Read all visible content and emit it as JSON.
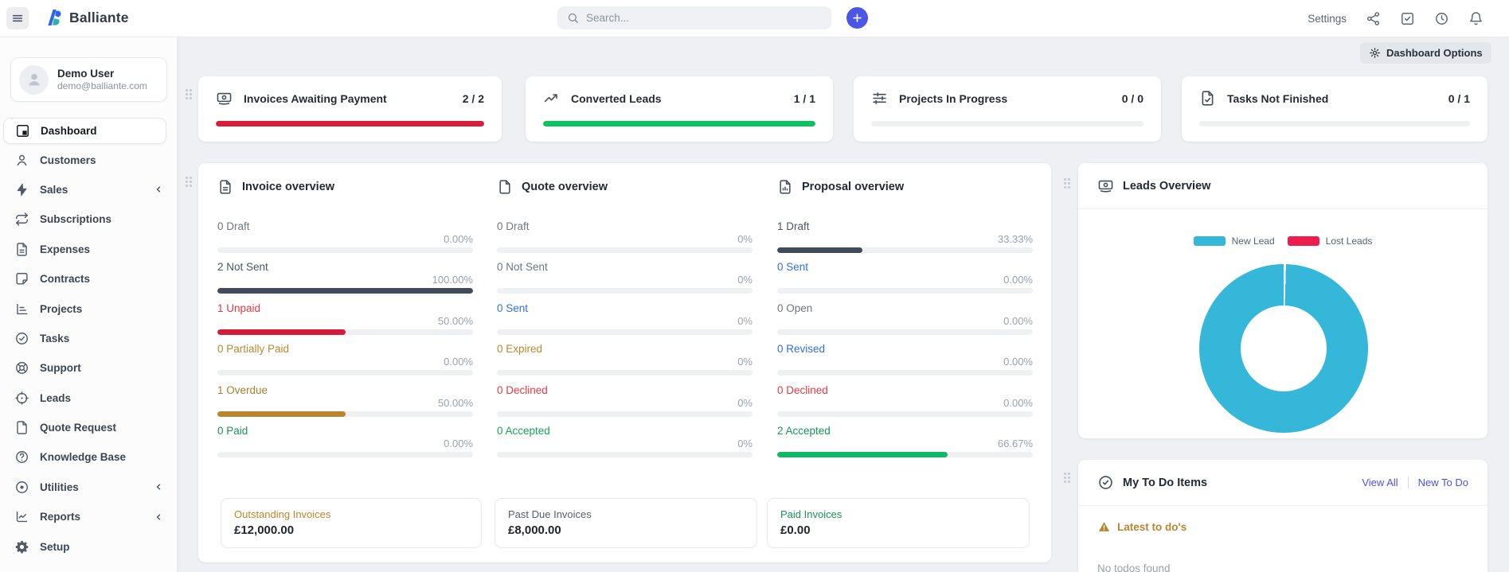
{
  "topbar": {
    "logo_text": "Balliante",
    "search_placeholder": "Search...",
    "settings_label": "Settings",
    "icons": [
      "share-icon",
      "check-square-icon",
      "clock-icon",
      "bell-icon"
    ]
  },
  "sidebar": {
    "user": {
      "name": "Demo User",
      "email": "demo@balliante.com"
    },
    "items": [
      {
        "label": "Dashboard",
        "icon": "dashboard-icon",
        "active": true,
        "chevron": false
      },
      {
        "label": "Customers",
        "icon": "customers-icon",
        "active": false,
        "chevron": false
      },
      {
        "label": "Sales",
        "icon": "sales-icon",
        "active": false,
        "chevron": true
      },
      {
        "label": "Subscriptions",
        "icon": "subscriptions-icon",
        "active": false,
        "chevron": false
      },
      {
        "label": "Expenses",
        "icon": "expenses-icon",
        "active": false,
        "chevron": false
      },
      {
        "label": "Contracts",
        "icon": "contracts-icon",
        "active": false,
        "chevron": false
      },
      {
        "label": "Projects",
        "icon": "projects-icon",
        "active": false,
        "chevron": false
      },
      {
        "label": "Tasks",
        "icon": "tasks-icon",
        "active": false,
        "chevron": false
      },
      {
        "label": "Support",
        "icon": "support-icon",
        "active": false,
        "chevron": false
      },
      {
        "label": "Leads",
        "icon": "leads-icon",
        "active": false,
        "chevron": false
      },
      {
        "label": "Quote Request",
        "icon": "quote-request-icon",
        "active": false,
        "chevron": false
      },
      {
        "label": "Knowledge Base",
        "icon": "knowledge-base-icon",
        "active": false,
        "chevron": false
      },
      {
        "label": "Utilities",
        "icon": "utilities-icon",
        "active": false,
        "chevron": true
      },
      {
        "label": "Reports",
        "icon": "reports-icon",
        "active": false,
        "chevron": true
      },
      {
        "label": "Setup",
        "icon": "setup-icon",
        "active": false,
        "chevron": false
      }
    ]
  },
  "dashboard_options": {
    "label": "Dashboard Options",
    "icon": "gear-icon"
  },
  "stat_cards": [
    {
      "label": "Invoices Awaiting Payment",
      "value": "2 / 2",
      "icon": "banknote-icon",
      "fill": 100,
      "bar_color": "#da1b39"
    },
    {
      "label": "Converted Leads",
      "value": "1 / 1",
      "icon": "trending-up-icon",
      "fill": 100,
      "bar_color": "#0cc15f"
    },
    {
      "label": "Projects In Progress",
      "value": "0 / 0",
      "icon": "sliders-icon",
      "fill": 0,
      "bar_color": "#0cc15f"
    },
    {
      "label": "Tasks Not Finished",
      "value": "0 / 1",
      "icon": "file-check-icon",
      "fill": 0,
      "bar_color": "#0cc15f"
    }
  ],
  "overview_panels": [
    {
      "title": "Invoice overview",
      "icon": "file-text-icon",
      "rows": [
        {
          "text": "0 Draft",
          "color": "#6f7782",
          "pct": "0.00%",
          "fill": 0,
          "bar_color": "#414b5c"
        },
        {
          "text": "2 Not Sent",
          "color": "#4e5660",
          "pct": "100.00%",
          "fill": 100,
          "bar_color": "#414b5c"
        },
        {
          "text": "1 Unpaid",
          "color": "#e13b42",
          "pct": "50.00%",
          "fill": 50,
          "bar_color": "#d41c3a"
        },
        {
          "text": "0 Partially Paid",
          "color": "#b78a2f",
          "pct": "0.00%",
          "fill": 0,
          "bar_color": "#b8862d"
        },
        {
          "text": "1 Overdue",
          "color": "#a9802c",
          "pct": "50.00%",
          "fill": 50,
          "bar_color": "#b8862d"
        },
        {
          "text": "0 Paid",
          "color": "#1a9355",
          "pct": "0.00%",
          "fill": 0,
          "bar_color": "#0db964"
        }
      ]
    },
    {
      "title": "Quote overview",
      "icon": "file-icon",
      "rows": [
        {
          "text": "0 Draft",
          "color": "#6f7782",
          "pct": "0%",
          "fill": 0,
          "bar_color": "#414b5c"
        },
        {
          "text": "0 Not Sent",
          "color": "#6f7782",
          "pct": "0%",
          "fill": 0,
          "bar_color": "#414b5c"
        },
        {
          "text": "0 Sent",
          "color": "#2f6fe4",
          "pct": "0%",
          "fill": 0,
          "bar_color": "#2f6fe4"
        },
        {
          "text": "0 Expired",
          "color": "#b78a2f",
          "pct": "0%",
          "fill": 0,
          "bar_color": "#b8862d"
        },
        {
          "text": "0 Declined",
          "color": "#e13b42",
          "pct": "0%",
          "fill": 0,
          "bar_color": "#d41c3a"
        },
        {
          "text": "0 Accepted",
          "color": "#17a258",
          "pct": "0%",
          "fill": 0,
          "bar_color": "#0db964"
        }
      ]
    },
    {
      "title": "Proposal overview",
      "icon": "file-chart-icon",
      "rows": [
        {
          "text": "1 Draft",
          "color": "#4e5660",
          "pct": "33.33%",
          "fill": 33.33,
          "bar_color": "#414b5c"
        },
        {
          "text": "0 Sent",
          "color": "#2f6fe4",
          "pct": "0.00%",
          "fill": 0,
          "bar_color": "#2f6fe4"
        },
        {
          "text": "0 Open",
          "color": "#6f7782",
          "pct": "0.00%",
          "fill": 0,
          "bar_color": "#414b5c"
        },
        {
          "text": "0 Revised",
          "color": "#2f6fe4",
          "pct": "0.00%",
          "fill": 0,
          "bar_color": "#2f6fe4"
        },
        {
          "text": "0 Declined",
          "color": "#e13b42",
          "pct": "0.00%",
          "fill": 0,
          "bar_color": "#d41c3a"
        },
        {
          "text": "2 Accepted",
          "color": "#149553",
          "pct": "66.67%",
          "fill": 66.67,
          "bar_color": "#0db964"
        }
      ]
    }
  ],
  "summary_boxes": [
    {
      "label": "Outstanding Invoices",
      "value": "£12,000.00",
      "color": "#bc862d"
    },
    {
      "label": "Past Due Invoices",
      "value": "£8,000.00",
      "color": "#566069"
    },
    {
      "label": "Paid Invoices",
      "value": "£0.00",
      "color": "#169352"
    }
  ],
  "leads_overview": {
    "title": "Leads Overview",
    "icon": "banknote-icon",
    "legend": [
      {
        "label": "New Lead",
        "color": "#35b7d9"
      },
      {
        "label": "Lost Leads",
        "color": "#ee1d4e"
      }
    ]
  },
  "chart_data": {
    "type": "pie",
    "title": "Leads Overview",
    "labels": [
      "New Lead",
      "Lost Leads"
    ],
    "values": [
      1,
      0
    ],
    "colors": [
      "#35b7d9",
      "#ee1d4e"
    ],
    "donut": true,
    "legend_position": "top"
  },
  "todo": {
    "title": "My To Do Items",
    "icon": "badge-check-icon",
    "view_all_label": "View All",
    "new_todo_label": "New To Do",
    "alert_text": "Latest to do's",
    "empty_text": "No todos found",
    "link_color": "#4b51e3"
  }
}
